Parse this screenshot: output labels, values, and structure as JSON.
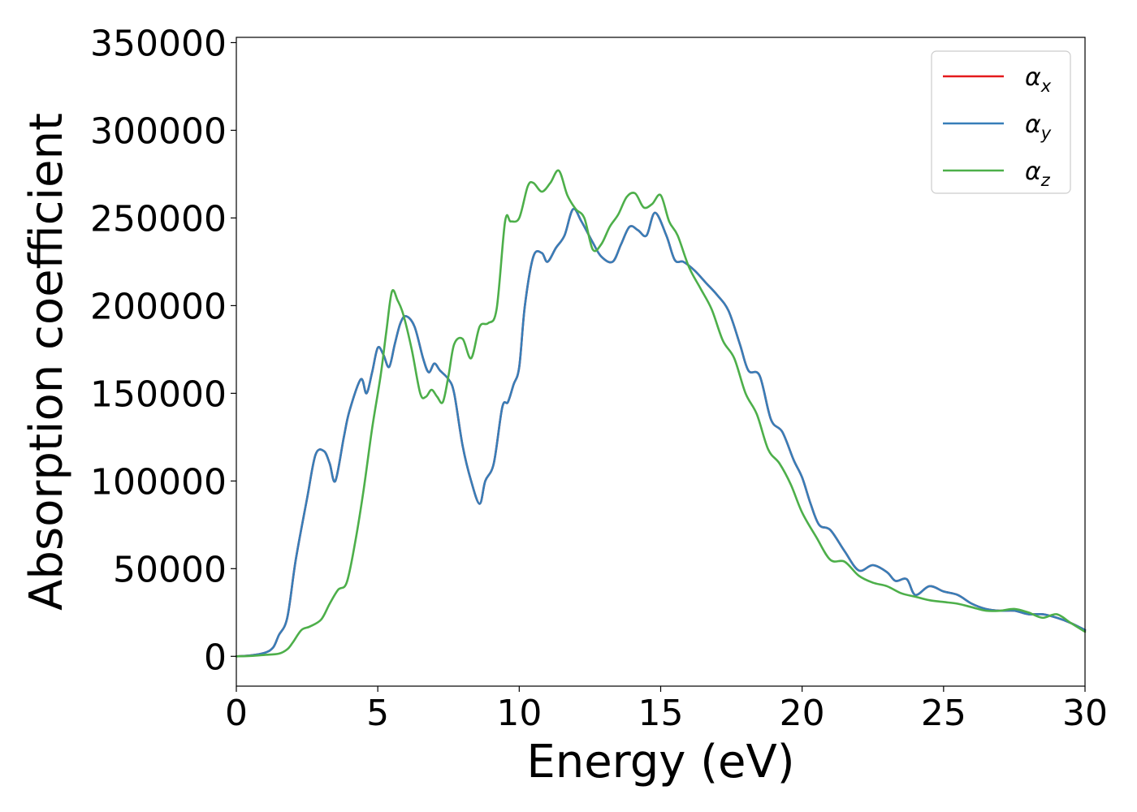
{
  "chart_data": {
    "type": "line",
    "title": "",
    "xlabel": "Energy (eV)",
    "ylabel": "Absorption coefficient",
    "xlim": [
      0,
      30
    ],
    "ylim": [
      -17000,
      353000
    ],
    "xticks": [
      0,
      5,
      10,
      15,
      20,
      25,
      30
    ],
    "xtick_labels": [
      "0",
      "5",
      "10",
      "15",
      "20",
      "25",
      "30"
    ],
    "yticks": [
      0,
      50000,
      100000,
      150000,
      200000,
      250000,
      300000,
      350000
    ],
    "ytick_labels": [
      "0",
      "50000",
      "100000",
      "150000",
      "200000",
      "250000",
      "300000",
      "350000"
    ],
    "grid": false,
    "legend_position": "top-right",
    "series": [
      {
        "name": "α_x",
        "label_main": "α",
        "label_sub": "x",
        "color": "#e41a1c",
        "x": [
          0,
          0.5,
          1.0,
          1.3,
          1.5,
          1.8,
          2.1,
          2.5,
          2.8,
          3.1,
          3.3,
          3.5,
          3.8,
          4.0,
          4.4,
          4.6,
          4.8,
          5.0,
          5.2,
          5.4,
          5.6,
          5.8,
          6.0,
          6.3,
          6.6,
          6.8,
          7.0,
          7.2,
          7.5,
          7.7,
          8.0,
          8.3,
          8.6,
          8.8,
          9.1,
          9.4,
          9.6,
          9.8,
          10.0,
          10.2,
          10.5,
          10.8,
          11.0,
          11.3,
          11.6,
          11.9,
          12.2,
          12.6,
          12.9,
          13.3,
          13.6,
          13.9,
          14.2,
          14.5,
          14.8,
          15.2,
          15.5,
          15.8,
          16.2,
          16.6,
          17.0,
          17.4,
          17.8,
          18.1,
          18.5,
          18.9,
          19.3,
          19.7,
          20.0,
          20.3,
          20.6,
          21.0,
          21.5,
          22.0,
          22.5,
          23.0,
          23.3,
          23.7,
          24.0,
          24.5,
          25.0,
          25.5,
          26.0,
          26.5,
          27.0,
          27.5,
          28.0,
          28.5,
          29.0,
          29.5,
          30.0
        ],
        "y": [
          0,
          500,
          2000,
          5000,
          12000,
          22000,
          55000,
          90000,
          115000,
          117000,
          110000,
          100000,
          125000,
          140000,
          158000,
          150000,
          162000,
          176000,
          172000,
          165000,
          178000,
          190000,
          194000,
          188000,
          170000,
          162000,
          167000,
          163000,
          158000,
          150000,
          120000,
          100000,
          87000,
          100000,
          110000,
          142000,
          145000,
          155000,
          165000,
          200000,
          228000,
          230000,
          225000,
          233000,
          240000,
          255000,
          248000,
          236000,
          228000,
          225000,
          235000,
          245000,
          243000,
          240000,
          253000,
          240000,
          226000,
          225000,
          220000,
          213000,
          206000,
          197000,
          178000,
          163000,
          160000,
          135000,
          128000,
          112000,
          102000,
          87000,
          75000,
          72000,
          60000,
          49000,
          52000,
          48000,
          43000,
          44000,
          35000,
          40000,
          37000,
          35000,
          30000,
          27000,
          26000,
          26000,
          24000,
          24000,
          22000,
          19000,
          15000
        ]
      },
      {
        "name": "α_y",
        "label_main": "α",
        "label_sub": "y",
        "color": "#377eb8",
        "x": [
          0,
          0.5,
          1.0,
          1.3,
          1.5,
          1.8,
          2.1,
          2.5,
          2.8,
          3.1,
          3.3,
          3.5,
          3.8,
          4.0,
          4.4,
          4.6,
          4.8,
          5.0,
          5.2,
          5.4,
          5.6,
          5.8,
          6.0,
          6.3,
          6.6,
          6.8,
          7.0,
          7.2,
          7.5,
          7.7,
          8.0,
          8.3,
          8.6,
          8.8,
          9.1,
          9.4,
          9.6,
          9.8,
          10.0,
          10.2,
          10.5,
          10.8,
          11.0,
          11.3,
          11.6,
          11.9,
          12.2,
          12.6,
          12.9,
          13.3,
          13.6,
          13.9,
          14.2,
          14.5,
          14.8,
          15.2,
          15.5,
          15.8,
          16.2,
          16.6,
          17.0,
          17.4,
          17.8,
          18.1,
          18.5,
          18.9,
          19.3,
          19.7,
          20.0,
          20.3,
          20.6,
          21.0,
          21.5,
          22.0,
          22.5,
          23.0,
          23.3,
          23.7,
          24.0,
          24.5,
          25.0,
          25.5,
          26.0,
          26.5,
          27.0,
          27.5,
          28.0,
          28.5,
          29.0,
          29.5,
          30.0
        ],
        "y": [
          0,
          500,
          2000,
          5000,
          12000,
          22000,
          55000,
          90000,
          115000,
          117000,
          110000,
          100000,
          125000,
          140000,
          158000,
          150000,
          162000,
          176000,
          172000,
          165000,
          178000,
          190000,
          194000,
          188000,
          170000,
          162000,
          167000,
          163000,
          158000,
          150000,
          120000,
          100000,
          87000,
          100000,
          110000,
          142000,
          145000,
          155000,
          165000,
          200000,
          228000,
          230000,
          225000,
          233000,
          240000,
          255000,
          248000,
          236000,
          228000,
          225000,
          235000,
          245000,
          243000,
          240000,
          253000,
          240000,
          226000,
          225000,
          220000,
          213000,
          206000,
          197000,
          178000,
          163000,
          160000,
          135000,
          128000,
          112000,
          102000,
          87000,
          75000,
          72000,
          60000,
          49000,
          52000,
          48000,
          43000,
          44000,
          35000,
          40000,
          37000,
          35000,
          30000,
          27000,
          26000,
          26000,
          24000,
          24000,
          22000,
          19000,
          15000
        ]
      },
      {
        "name": "α_z",
        "label_main": "α",
        "label_sub": "z",
        "color": "#4daf4a",
        "x": [
          0,
          0.5,
          1.0,
          1.5,
          1.8,
          2.0,
          2.3,
          2.6,
          3.0,
          3.3,
          3.6,
          3.9,
          4.2,
          4.5,
          4.8,
          5.1,
          5.3,
          5.5,
          5.7,
          5.9,
          6.2,
          6.5,
          6.7,
          6.9,
          7.1,
          7.3,
          7.5,
          7.7,
          8.0,
          8.3,
          8.6,
          8.9,
          9.2,
          9.5,
          9.7,
          10.0,
          10.3,
          10.5,
          10.8,
          11.1,
          11.4,
          11.7,
          12.0,
          12.3,
          12.6,
          12.9,
          13.2,
          13.5,
          13.8,
          14.1,
          14.4,
          14.7,
          15.0,
          15.3,
          15.6,
          16.0,
          16.4,
          16.8,
          17.2,
          17.6,
          18.0,
          18.4,
          18.8,
          19.2,
          19.6,
          20.0,
          20.5,
          21.0,
          21.5,
          22.0,
          22.5,
          23.0,
          23.5,
          24.0,
          24.5,
          25.0,
          25.5,
          26.0,
          26.5,
          27.0,
          27.5,
          28.0,
          28.5,
          29.0,
          29.5,
          30.0
        ],
        "y": [
          0,
          200,
          800,
          1500,
          4000,
          8000,
          15000,
          17000,
          21000,
          30000,
          38000,
          42000,
          65000,
          95000,
          130000,
          160000,
          185000,
          208000,
          203000,
          195000,
          175000,
          150000,
          148000,
          152000,
          148000,
          145000,
          160000,
          178000,
          181000,
          170000,
          188000,
          190000,
          198000,
          248000,
          248000,
          250000,
          268000,
          270000,
          265000,
          270000,
          277000,
          263000,
          255000,
          250000,
          232000,
          235000,
          245000,
          252000,
          262000,
          264000,
          256000,
          258000,
          263000,
          248000,
          240000,
          222000,
          210000,
          198000,
          180000,
          170000,
          150000,
          138000,
          118000,
          110000,
          98000,
          82000,
          68000,
          55000,
          54000,
          46000,
          42000,
          40000,
          36000,
          34000,
          32000,
          31000,
          30000,
          28000,
          26000,
          26000,
          27000,
          25000,
          22000,
          24000,
          19000,
          14000
        ]
      }
    ]
  }
}
